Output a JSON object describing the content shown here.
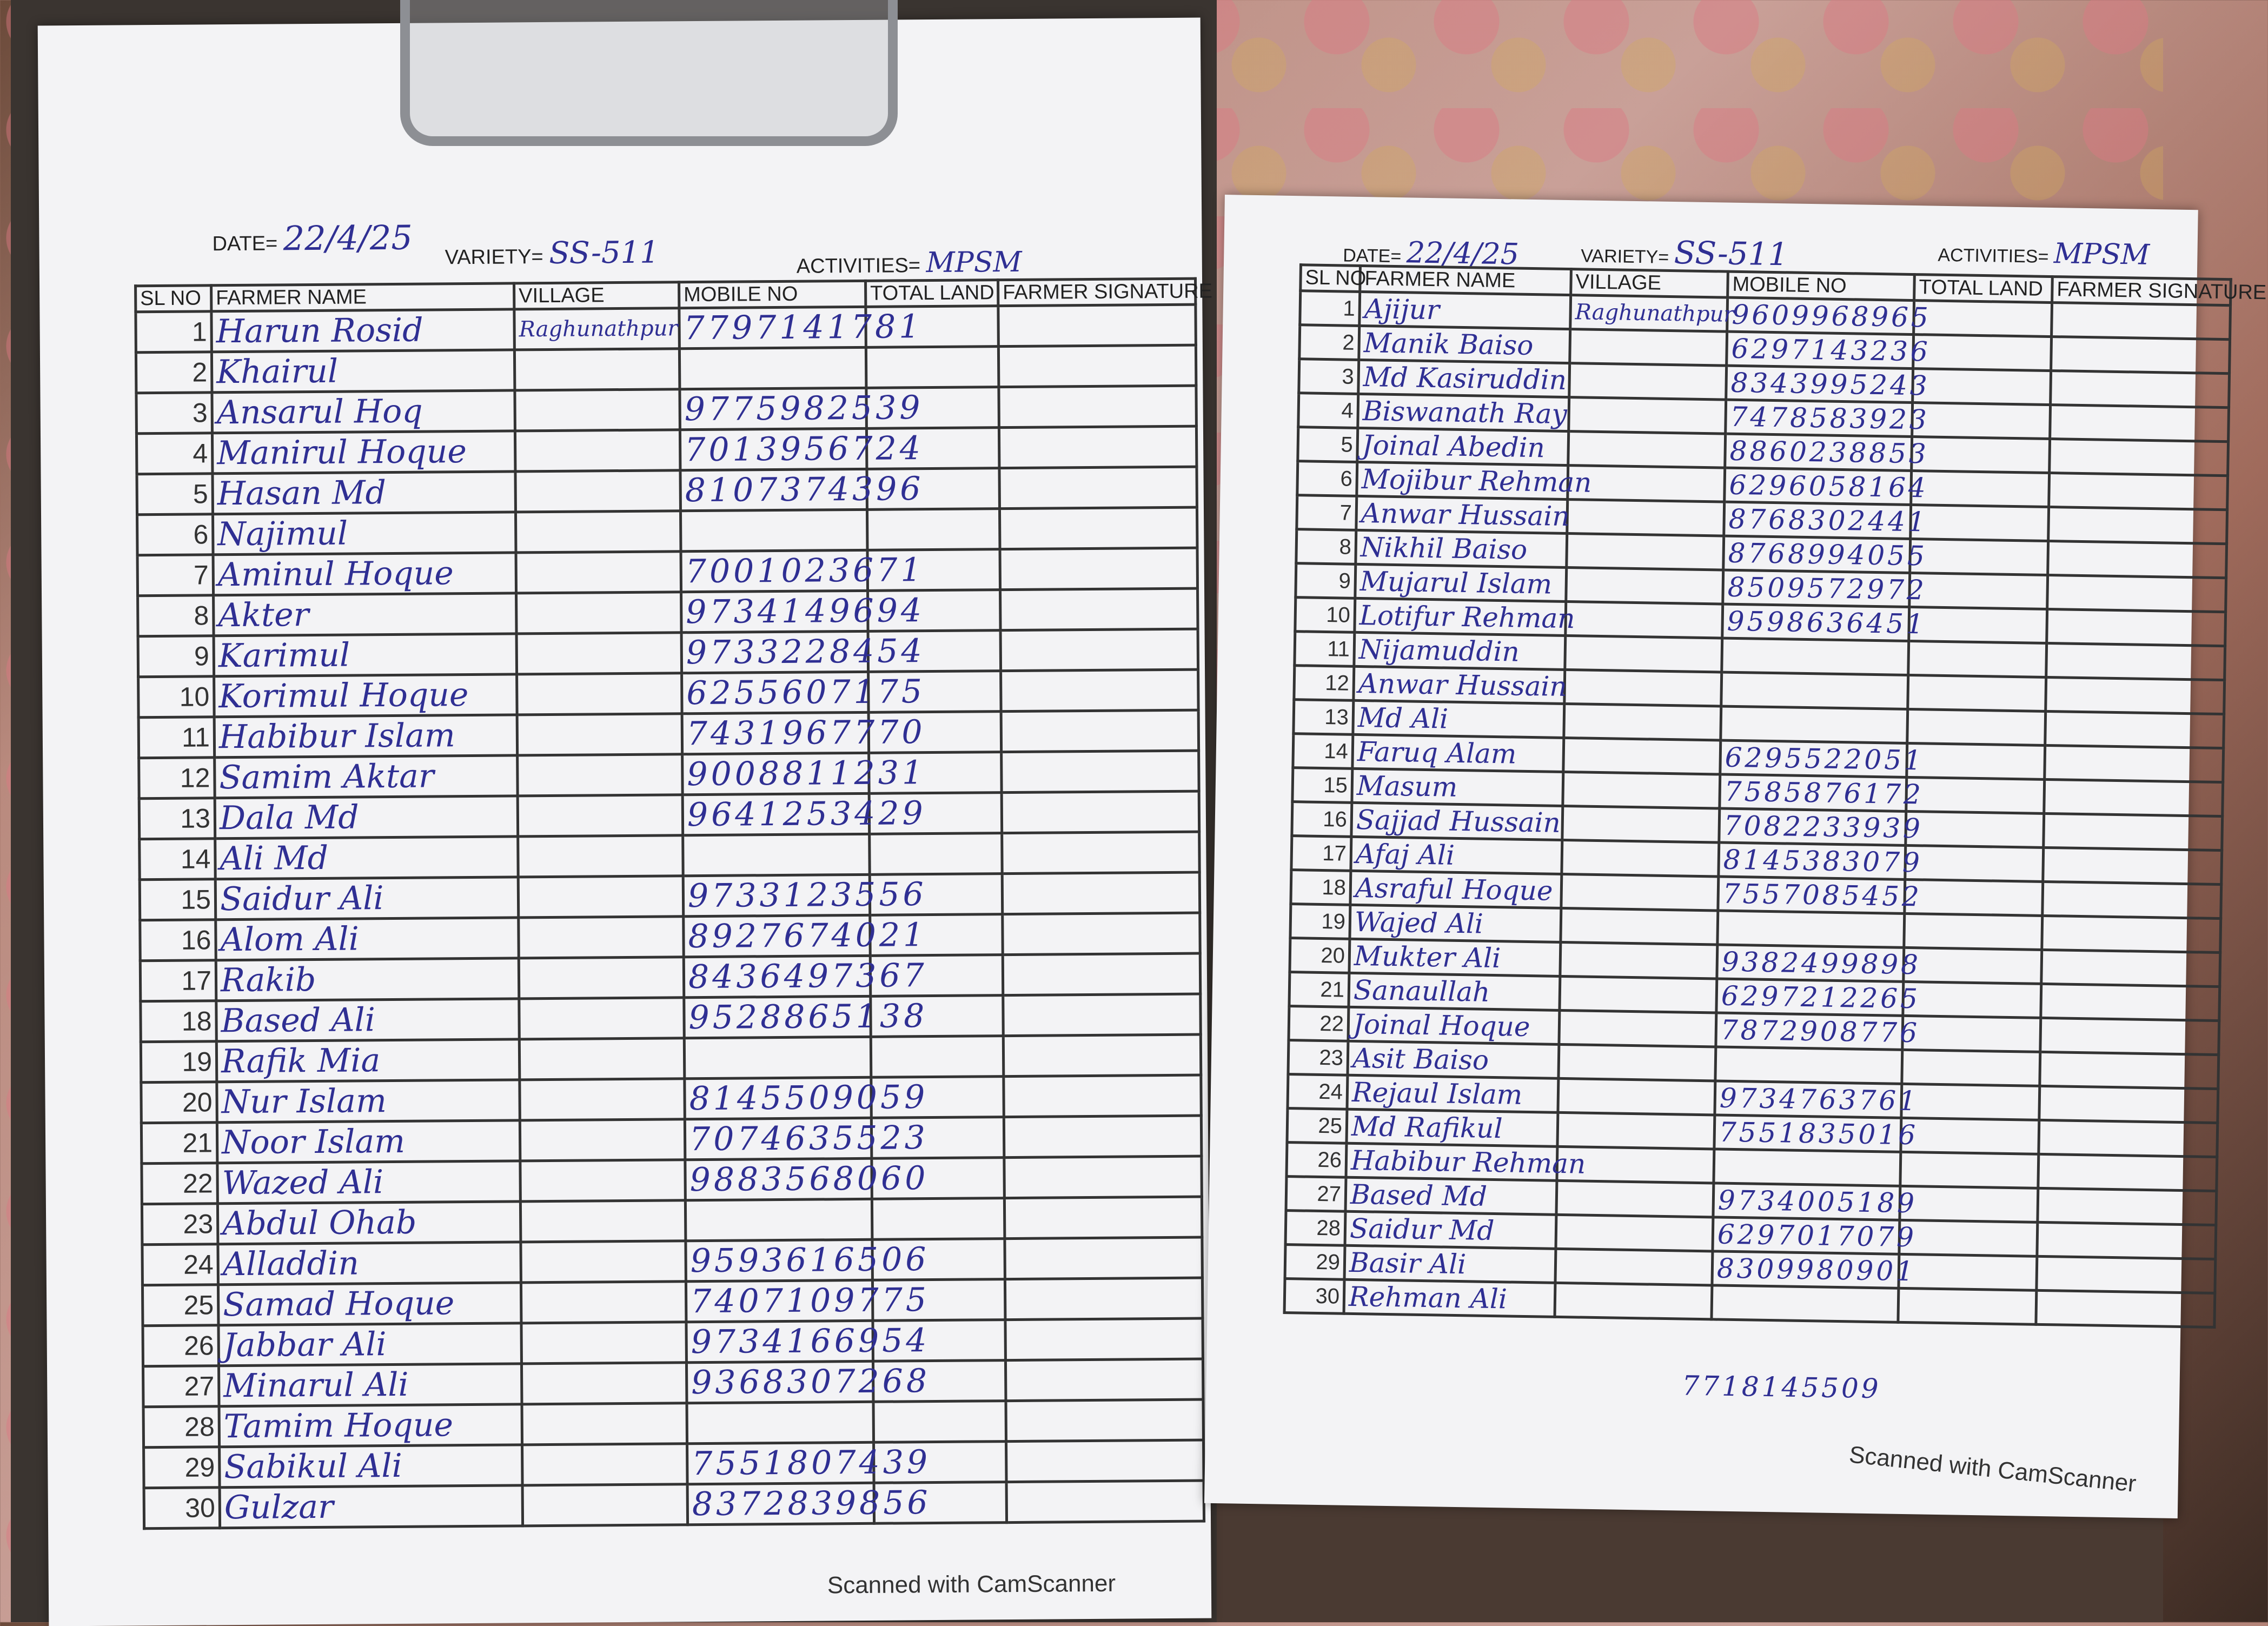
{
  "left_sheet": {
    "date_label": "DATE=",
    "date": "22/4/25",
    "variety_label": "VARIETY=",
    "variety": "SS-511",
    "activities_label": "ACTIVITIES=",
    "activities": "MPSM",
    "columns": [
      "SL NO",
      "FARMER NAME",
      "VILLAGE",
      "MOBILE NO",
      "TOTAL LAND",
      "FARMER SIGNATURE"
    ],
    "rows": [
      {
        "sl": "1",
        "name": "Harun Rosid",
        "village": "Raghunathpur",
        "mobile": "7797141781"
      },
      {
        "sl": "2",
        "name": "Khairul",
        "village": "",
        "mobile": ""
      },
      {
        "sl": "3",
        "name": "Ansarul Hoq",
        "village": "",
        "mobile": "9775982539"
      },
      {
        "sl": "4",
        "name": "Manirul Hoque",
        "village": "",
        "mobile": "7013956724"
      },
      {
        "sl": "5",
        "name": "Hasan Md",
        "village": "",
        "mobile": "8107374396"
      },
      {
        "sl": "6",
        "name": "Najimul",
        "village": "",
        "mobile": ""
      },
      {
        "sl": "7",
        "name": "Aminul Hoque",
        "village": "",
        "mobile": "7001023671"
      },
      {
        "sl": "8",
        "name": "Akter",
        "village": "",
        "mobile": "9734149694"
      },
      {
        "sl": "9",
        "name": "Karimul",
        "village": "",
        "mobile": "9733228454"
      },
      {
        "sl": "10",
        "name": "Korimul Hoque",
        "village": "",
        "mobile": "6255607175"
      },
      {
        "sl": "11",
        "name": "Habibur Islam",
        "village": "",
        "mobile": "7431967770"
      },
      {
        "sl": "12",
        "name": "Samim Aktar",
        "village": "",
        "mobile": "9008811231"
      },
      {
        "sl": "13",
        "name": "Dala Md",
        "village": "",
        "mobile": "9641253429"
      },
      {
        "sl": "14",
        "name": "Ali Md",
        "village": "",
        "mobile": ""
      },
      {
        "sl": "15",
        "name": "Saidur Ali",
        "village": "",
        "mobile": "9733123556"
      },
      {
        "sl": "16",
        "name": "Alom Ali",
        "village": "",
        "mobile": "8927674021"
      },
      {
        "sl": "17",
        "name": "Rakib",
        "village": "",
        "mobile": "8436497367"
      },
      {
        "sl": "18",
        "name": "Based Ali",
        "village": "",
        "mobile": "9528865138"
      },
      {
        "sl": "19",
        "name": "Rafik Mia",
        "village": "",
        "mobile": ""
      },
      {
        "sl": "20",
        "name": "Nur Islam",
        "village": "",
        "mobile": "8145509059"
      },
      {
        "sl": "21",
        "name": "Noor Islam",
        "village": "",
        "mobile": "7074635523"
      },
      {
        "sl": "22",
        "name": "Wazed Ali",
        "village": "",
        "mobile": "9883568060"
      },
      {
        "sl": "23",
        "name": "Abdul Ohab",
        "village": "",
        "mobile": ""
      },
      {
        "sl": "24",
        "name": "Alladdin",
        "village": "",
        "mobile": "9593616506"
      },
      {
        "sl": "25",
        "name": "Samad Hoque",
        "village": "",
        "mobile": "7407109775"
      },
      {
        "sl": "26",
        "name": "Jabbar Ali",
        "village": "",
        "mobile": "9734166954"
      },
      {
        "sl": "27",
        "name": "Minarul Ali",
        "village": "",
        "mobile": "9368307268"
      },
      {
        "sl": "28",
        "name": "Tamim Hoque",
        "village": "",
        "mobile": ""
      },
      {
        "sl": "29",
        "name": "Sabikul Ali",
        "village": "",
        "mobile": "7551807439"
      },
      {
        "sl": "30",
        "name": "Gulzar",
        "village": "",
        "mobile": "8372839856"
      }
    ],
    "footer": "Scanned with CamScanner"
  },
  "right_sheet": {
    "date_label": "DATE=",
    "date": "22/4/25",
    "variety_label": "VARIETY=",
    "variety": "SS-511",
    "activities_label": "ACTIVITIES=",
    "activities": "MPSM",
    "columns": [
      "SL NO",
      "FARMER NAME",
      "VILLAGE",
      "MOBILE NO",
      "TOTAL LAND",
      "FARMER SIGNATURE"
    ],
    "rows": [
      {
        "sl": "1",
        "name": "Ajijur",
        "village": "Raghunathpur",
        "mobile": "9609968965"
      },
      {
        "sl": "2",
        "name": "Manik Baiso",
        "village": "",
        "mobile": "6297143236"
      },
      {
        "sl": "3",
        "name": "Md Kasiruddin",
        "village": "",
        "mobile": "8343995243"
      },
      {
        "sl": "4",
        "name": "Biswanath Ray",
        "village": "",
        "mobile": "7478583923"
      },
      {
        "sl": "5",
        "name": "Joinal Abedin",
        "village": "",
        "mobile": "8860238853"
      },
      {
        "sl": "6",
        "name": "Mojibur Rehman",
        "village": "",
        "mobile": "6296058164"
      },
      {
        "sl": "7",
        "name": "Anwar Hussain",
        "village": "",
        "mobile": "8768302441"
      },
      {
        "sl": "8",
        "name": "Nikhil Baiso",
        "village": "",
        "mobile": "8768994055"
      },
      {
        "sl": "9",
        "name": "Mujarul Islam",
        "village": "",
        "mobile": "8509572972"
      },
      {
        "sl": "10",
        "name": "Lotifur Rehman",
        "village": "",
        "mobile": "9598636451"
      },
      {
        "sl": "11",
        "name": "Nijamuddin",
        "village": "",
        "mobile": ""
      },
      {
        "sl": "12",
        "name": "Anwar Hussain",
        "village": "",
        "mobile": ""
      },
      {
        "sl": "13",
        "name": "Md Ali",
        "village": "",
        "mobile": ""
      },
      {
        "sl": "14",
        "name": "Faruq Alam",
        "village": "",
        "mobile": "6295522051"
      },
      {
        "sl": "15",
        "name": "Masum",
        "village": "",
        "mobile": "7585876172"
      },
      {
        "sl": "16",
        "name": "Sajjad Hussain",
        "village": "",
        "mobile": "7082233939"
      },
      {
        "sl": "17",
        "name": "Afaj Ali",
        "village": "",
        "mobile": "8145383079"
      },
      {
        "sl": "18",
        "name": "Asraful Hoque",
        "village": "",
        "mobile": "7557085452"
      },
      {
        "sl": "19",
        "name": "Wajed Ali",
        "village": "",
        "mobile": ""
      },
      {
        "sl": "20",
        "name": "Mukter Ali",
        "village": "",
        "mobile": "9382499898"
      },
      {
        "sl": "21",
        "name": "Sanaullah",
        "village": "",
        "mobile": "6297212265"
      },
      {
        "sl": "22",
        "name": "Joinal Hoque",
        "village": "",
        "mobile": "7872908776"
      },
      {
        "sl": "23",
        "name": "Asit Baiso",
        "village": "",
        "mobile": ""
      },
      {
        "sl": "24",
        "name": "Rejaul Islam",
        "village": "",
        "mobile": "9734763761"
      },
      {
        "sl": "25",
        "name": "Md Rafikul",
        "village": "",
        "mobile": "7551835016"
      },
      {
        "sl": "26",
        "name": "Habibur Rehman",
        "village": "",
        "mobile": ""
      },
      {
        "sl": "27",
        "name": "Based Md",
        "village": "",
        "mobile": "9734005189"
      },
      {
        "sl": "28",
        "name": "Saidur Md",
        "village": "",
        "mobile": "6297017079"
      },
      {
        "sl": "29",
        "name": "Basir Ali",
        "village": "",
        "mobile": "8309980901"
      },
      {
        "sl": "30",
        "name": "Rehman Ali",
        "village": "",
        "mobile": ""
      }
    ],
    "extra_mobile": "7718145509",
    "footer": "Scanned with CamScanner"
  }
}
